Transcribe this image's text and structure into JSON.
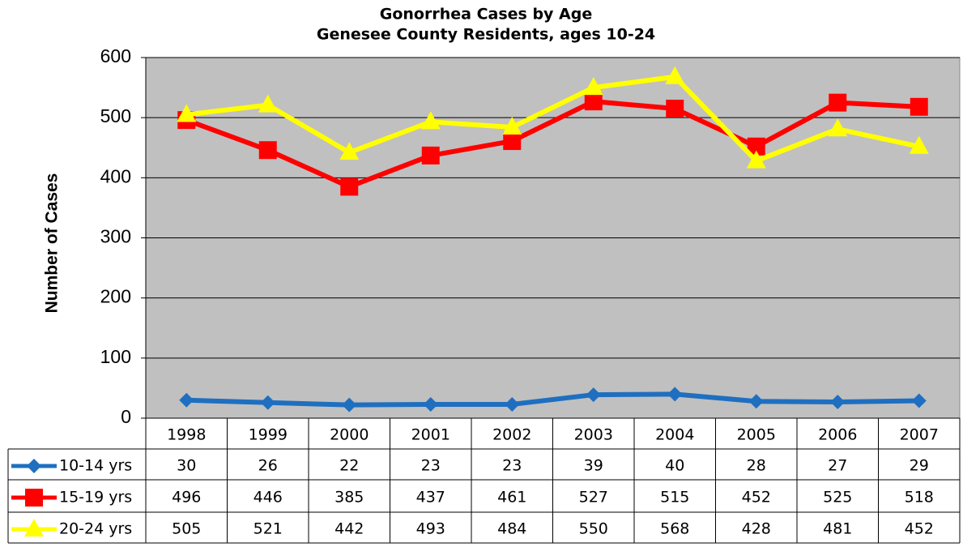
{
  "chart_data": {
    "type": "line",
    "title": "Gonorrhea Cases by Age",
    "subtitle": "Genesee County Residents, ages 10-24",
    "y_label": "Number of Cases",
    "categories": [
      "1998",
      "1999",
      "2000",
      "2001",
      "2002",
      "2003",
      "2004",
      "2005",
      "2006",
      "2007"
    ],
    "series": [
      {
        "name": "10-14 yrs",
        "color": "#1f6fc0",
        "marker": "diamond",
        "values": [
          30,
          26,
          22,
          23,
          23,
          39,
          40,
          28,
          27,
          29
        ]
      },
      {
        "name": "15-19 yrs",
        "color": "#ff0000",
        "marker": "square",
        "values": [
          496,
          446,
          385,
          437,
          461,
          527,
          515,
          452,
          525,
          518
        ]
      },
      {
        "name": "20-24 yrs",
        "color": "#ffff00",
        "marker": "triangle",
        "values": [
          505,
          521,
          442,
          493,
          484,
          550,
          568,
          428,
          481,
          452
        ]
      }
    ],
    "ylim": [
      0,
      600
    ],
    "yticks": [
      0,
      100,
      200,
      300,
      400,
      500,
      600
    ],
    "grid": true,
    "plot_background": "#c0c0c0",
    "data_table": true
  }
}
